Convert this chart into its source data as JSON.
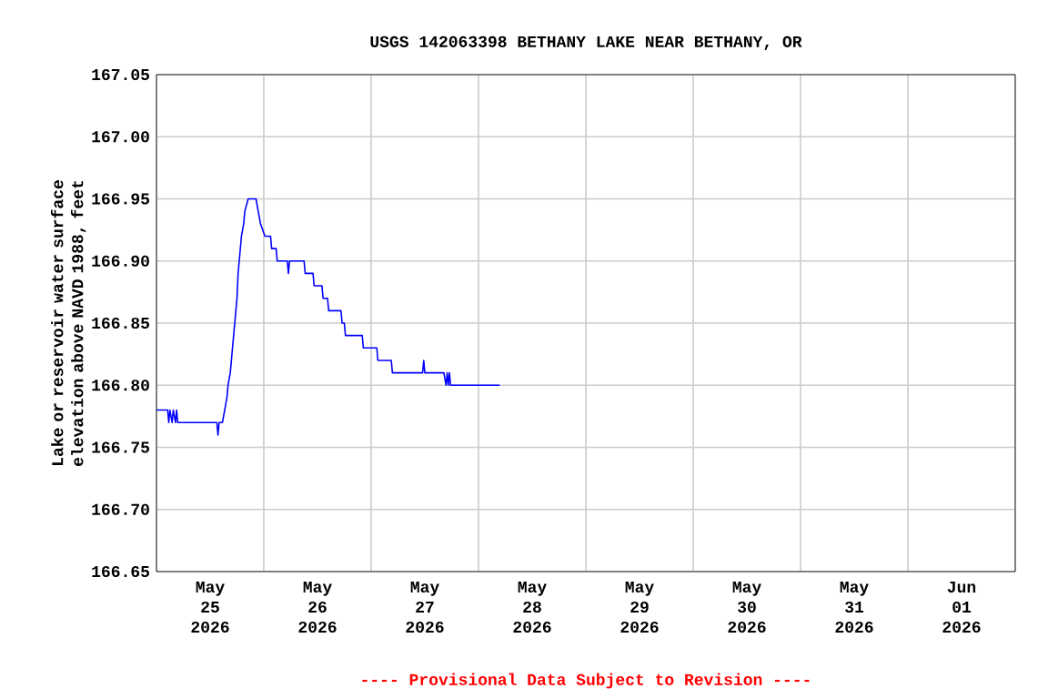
{
  "chart_data": {
    "type": "line",
    "title": "USGS 142063398 BETHANY LAKE NEAR BETHANY, OR",
    "ylabel": "Lake or reservoir water surface elevation above NAVD 1988, feet",
    "annotations": [
      "---- Provisional Data Subject to Revision ----"
    ],
    "xlim": [
      "2026-05-25T00:00",
      "2026-06-02T00:00"
    ],
    "xticks": [
      {
        "value": "2026-05-25T00:00",
        "label": null
      },
      {
        "value": "2026-05-25T12:00",
        "label": "May 25 2026"
      },
      {
        "value": "2026-05-26T00:00",
        "label": null
      },
      {
        "value": "2026-05-26T12:00",
        "label": "May 26 2026"
      },
      {
        "value": "2026-05-27T00:00",
        "label": null
      },
      {
        "value": "2026-05-27T12:00",
        "label": "May 27 2026"
      },
      {
        "value": "2026-05-28T00:00",
        "label": null
      },
      {
        "value": "2026-05-28T12:00",
        "label": "May 28 2026"
      },
      {
        "value": "2026-05-29T00:00",
        "label": null
      },
      {
        "value": "2026-05-29T12:00",
        "label": "May 29 2026"
      },
      {
        "value": "2026-05-30T00:00",
        "label": null
      },
      {
        "value": "2026-05-30T12:00",
        "label": "May 30 2026"
      },
      {
        "value": "2026-05-31T00:00",
        "label": null
      },
      {
        "value": "2026-05-31T12:00",
        "label": "May 31 2026"
      },
      {
        "value": "2026-06-01T00:00",
        "label": null
      },
      {
        "value": "2026-06-01T12:00",
        "label": "Jun 01 2026"
      },
      {
        "value": "2026-06-02T00:00",
        "label": null
      }
    ],
    "ylim": [
      166.65,
      167.05
    ],
    "yticks": [
      166.65,
      {
        "value": 166.7,
        "label": "166.70"
      },
      166.75,
      {
        "value": 166.8,
        "label": "166.80"
      },
      166.85,
      {
        "value": 166.9,
        "label": "166.90"
      },
      166.95,
      {
        "value": 167.0,
        "label": "167.00"
      },
      167.05
    ],
    "grid": true,
    "marker": "none",
    "line_style": "solid",
    "series": [
      {
        "color": "#0000ff",
        "x": [
          "2026-05-25T00:00",
          "2026-05-25T02:30",
          "2026-05-25T02:45",
          "2026-05-25T03:00",
          "2026-05-25T03:30",
          "2026-05-25T03:45",
          "2026-05-25T04:15",
          "2026-05-25T04:30",
          "2026-05-25T04:45",
          "2026-05-25T13:30",
          "2026-05-25T13:45",
          "2026-05-25T14:00",
          "2026-05-25T14:45",
          "2026-05-25T15:15",
          "2026-05-25T15:45",
          "2026-05-25T16:00",
          "2026-05-25T16:30",
          "2026-05-25T17:00",
          "2026-05-25T17:15",
          "2026-05-25T17:45",
          "2026-05-25T18:00",
          "2026-05-25T18:15",
          "2026-05-25T18:30",
          "2026-05-25T19:00",
          "2026-05-25T19:30",
          "2026-05-25T19:45",
          "2026-05-25T20:30",
          "2026-05-25T22:15",
          "2026-05-25T22:45",
          "2026-05-25T23:15",
          "2026-05-26T00:15",
          "2026-05-26T01:30",
          "2026-05-26T01:45",
          "2026-05-26T02:45",
          "2026-05-26T03:00",
          "2026-05-26T05:15",
          "2026-05-26T05:30",
          "2026-05-26T05:45",
          "2026-05-26T09:00",
          "2026-05-26T09:15",
          "2026-05-26T11:00",
          "2026-05-26T11:15",
          "2026-05-26T13:00",
          "2026-05-26T13:15",
          "2026-05-26T14:15",
          "2026-05-26T14:30",
          "2026-05-26T17:15",
          "2026-05-26T17:30",
          "2026-05-26T18:00",
          "2026-05-26T18:15",
          "2026-05-26T22:00",
          "2026-05-26T22:15",
          "2026-05-27T01:15",
          "2026-05-27T01:30",
          "2026-05-27T04:30",
          "2026-05-27T04:45",
          "2026-05-27T11:30",
          "2026-05-27T11:45",
          "2026-05-27T12:00",
          "2026-05-27T16:15",
          "2026-05-27T16:45",
          "2026-05-27T17:00",
          "2026-05-27T17:15",
          "2026-05-27T17:30",
          "2026-05-27T17:45",
          "2026-05-28T04:45"
        ],
        "values": [
          166.78,
          166.78,
          166.77,
          166.78,
          166.77,
          166.78,
          166.77,
          166.78,
          166.77,
          166.77,
          166.76,
          166.77,
          166.77,
          166.78,
          166.79,
          166.8,
          166.81,
          166.83,
          166.84,
          166.86,
          166.87,
          166.89,
          166.9,
          166.92,
          166.93,
          166.94,
          166.95,
          166.95,
          166.94,
          166.93,
          166.92,
          166.92,
          166.91,
          166.91,
          166.9,
          166.9,
          166.89,
          166.9,
          166.9,
          166.89,
          166.89,
          166.88,
          166.88,
          166.87,
          166.87,
          166.86,
          166.86,
          166.85,
          166.85,
          166.84,
          166.84,
          166.83,
          166.83,
          166.82,
          166.82,
          166.81,
          166.81,
          166.82,
          166.81,
          166.81,
          166.8,
          166.81,
          166.8,
          166.81,
          166.8,
          166.8
        ]
      }
    ]
  }
}
